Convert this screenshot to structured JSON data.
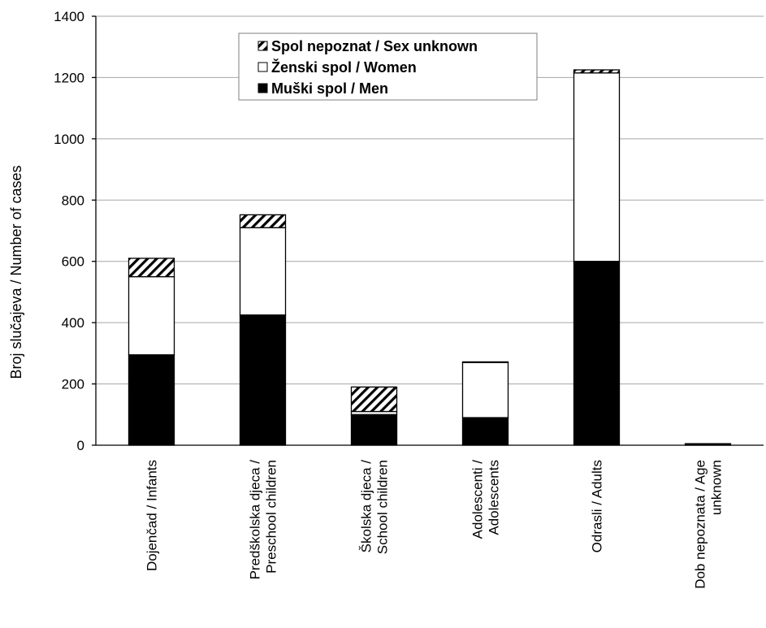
{
  "chart_data": {
    "type": "bar",
    "stacked": true,
    "ylabel": "Broj slučajeva / Number of cases",
    "ylim": [
      0,
      1400
    ],
    "yticks": [
      0,
      200,
      400,
      600,
      800,
      1000,
      1200,
      1400
    ],
    "grid": true,
    "legend_position": "top-center",
    "categories": [
      [
        "Dojenčad / Infants"
      ],
      [
        "Predškolska djeca /",
        "Preschool children"
      ],
      [
        "Školska djeca /",
        "School children"
      ],
      [
        "Adolescenti /",
        "Adolescents"
      ],
      [
        "Odrasli / Adults"
      ],
      [
        "Dob nepoznata /  Age",
        "unknown"
      ]
    ],
    "series": [
      {
        "name": "Muški spol / Men",
        "values": [
          295,
          425,
          100,
          90,
          600,
          5
        ],
        "fill": "#000000"
      },
      {
        "name": "Ženski spol / Women",
        "values": [
          255,
          285,
          10,
          180,
          615,
          0
        ],
        "fill": "#ffffff"
      },
      {
        "name": "Spol nepoznat / Sex unknown",
        "values": [
          60,
          42,
          80,
          2,
          10,
          0
        ],
        "fill": "hatch"
      }
    ],
    "legend_order": [
      2,
      1,
      0
    ]
  }
}
